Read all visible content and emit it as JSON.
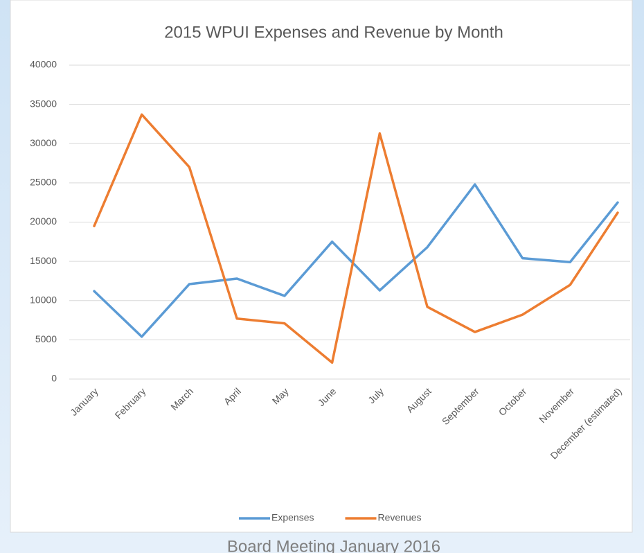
{
  "chart_data": {
    "type": "line",
    "title": "2015 WPUI Expenses and Revenue by Month",
    "categories": [
      "January",
      "February",
      "March",
      "April",
      "May",
      "June",
      "July",
      "August",
      "September",
      "October",
      "November",
      "December (estimated)"
    ],
    "series": [
      {
        "name": "Expenses",
        "color": "#5b9bd5",
        "values": [
          11200,
          5400,
          12100,
          12800,
          10600,
          17500,
          11300,
          16800,
          24800,
          15400,
          14900,
          22500
        ]
      },
      {
        "name": "Revenues",
        "color": "#ed7d31",
        "values": [
          19500,
          33700,
          27000,
          7700,
          7100,
          2100,
          31300,
          9200,
          6000,
          8200,
          12000,
          21200
        ]
      }
    ],
    "ylim": [
      0,
      40000
    ],
    "yticks": [
      0,
      5000,
      10000,
      15000,
      20000,
      25000,
      30000,
      35000,
      40000
    ],
    "grid": true,
    "legend": "bottom"
  },
  "footer": "Board Meeting January 2016"
}
